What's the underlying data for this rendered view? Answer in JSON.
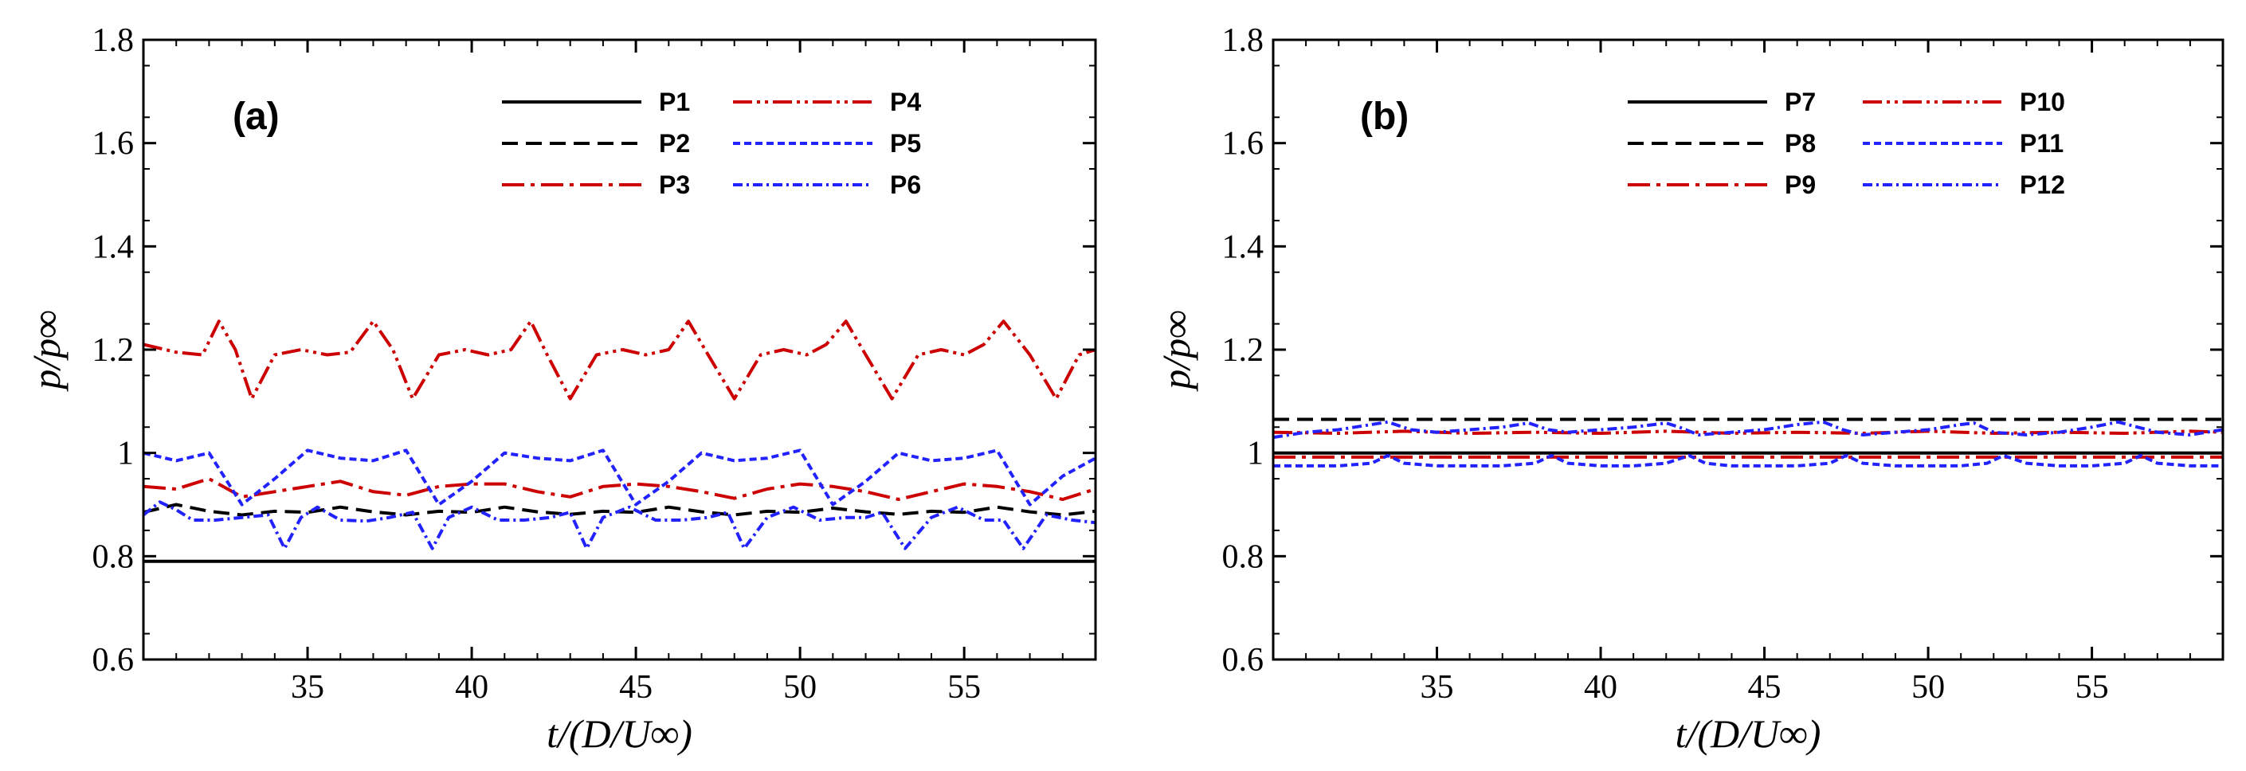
{
  "chart_data": [
    {
      "type": "line",
      "panel_label": "(a)",
      "xlabel": "t/(D/U∞)",
      "ylabel": "p/p∞",
      "xlim": [
        30,
        59
      ],
      "ylim": [
        0.6,
        1.8
      ],
      "xticks": [
        "35",
        "40",
        "45",
        "50",
        "55"
      ],
      "yticks": [
        "0.6",
        "0.8",
        "1",
        "1.2",
        "1.4",
        "1.6",
        "1.8"
      ],
      "grid": false,
      "legend_position": "top-right",
      "series": [
        {
          "name": "P1",
          "color": "#000000",
          "style": "solid",
          "x": [
            30,
            35,
            40,
            45,
            50,
            55,
            59
          ],
          "values": [
            0.79,
            0.79,
            0.79,
            0.79,
            0.79,
            0.79,
            0.79
          ]
        },
        {
          "name": "P2",
          "color": "#000000",
          "style": "dashed",
          "x": [
            30,
            31,
            32,
            33,
            34,
            35,
            36,
            37,
            38,
            39,
            40,
            41,
            42,
            43,
            44,
            45,
            46,
            47,
            48,
            49,
            50,
            51,
            52,
            53,
            54,
            55,
            56,
            57,
            58,
            59
          ],
          "values": [
            0.885,
            0.9,
            0.887,
            0.88,
            0.887,
            0.885,
            0.895,
            0.886,
            0.88,
            0.887,
            0.885,
            0.895,
            0.886,
            0.881,
            0.887,
            0.885,
            0.895,
            0.886,
            0.88,
            0.887,
            0.885,
            0.893,
            0.886,
            0.881,
            0.887,
            0.885,
            0.895,
            0.886,
            0.88,
            0.887
          ]
        },
        {
          "name": "P3",
          "color": "#cc0000",
          "style": "dashdot",
          "x": [
            30,
            31,
            32,
            33,
            34,
            35,
            36,
            37,
            38,
            39,
            40,
            41,
            42,
            43,
            44,
            45,
            46,
            47,
            48,
            49,
            50,
            51,
            52,
            53,
            54,
            55,
            56,
            57,
            58,
            59
          ],
          "values": [
            0.935,
            0.93,
            0.95,
            0.915,
            0.925,
            0.935,
            0.945,
            0.925,
            0.918,
            0.935,
            0.94,
            0.94,
            0.925,
            0.915,
            0.935,
            0.94,
            0.935,
            0.925,
            0.912,
            0.93,
            0.94,
            0.935,
            0.925,
            0.91,
            0.925,
            0.94,
            0.935,
            0.925,
            0.91,
            0.93
          ]
        },
        {
          "name": "P4",
          "color": "#cc0000",
          "style": "dashdotdot",
          "x": [
            30,
            31,
            31.8,
            32.3,
            32.8,
            33.3,
            34,
            34.8,
            35.6,
            36.3,
            37,
            37.6,
            38.2,
            39,
            39.8,
            40.5,
            41.2,
            41.8,
            42.3,
            43,
            43.8,
            44.6,
            45.3,
            46,
            46.6,
            47.2,
            48,
            48.8,
            49.5,
            50.2,
            50.8,
            51.4,
            52,
            52.8,
            53.6,
            54.3,
            55,
            55.6,
            56.2,
            57,
            57.8,
            58.5,
            59
          ],
          "values": [
            1.21,
            1.195,
            1.19,
            1.255,
            1.2,
            1.105,
            1.19,
            1.2,
            1.19,
            1.195,
            1.255,
            1.2,
            1.105,
            1.19,
            1.2,
            1.19,
            1.2,
            1.255,
            1.19,
            1.105,
            1.19,
            1.2,
            1.19,
            1.2,
            1.255,
            1.19,
            1.105,
            1.19,
            1.2,
            1.19,
            1.21,
            1.255,
            1.19,
            1.105,
            1.19,
            1.2,
            1.19,
            1.21,
            1.255,
            1.19,
            1.105,
            1.19,
            1.2
          ]
        },
        {
          "name": "P5",
          "color": "#2222ff",
          "style": "dashed-fine",
          "x": [
            30,
            31,
            32,
            33,
            34,
            35,
            36,
            37,
            38,
            39,
            40,
            41,
            42,
            43,
            44,
            45,
            46,
            47,
            48,
            49,
            50,
            51,
            52,
            53,
            54,
            55,
            56,
            57,
            58,
            59
          ],
          "values": [
            1.0,
            0.985,
            1.0,
            0.9,
            0.95,
            1.005,
            0.99,
            0.985,
            1.005,
            0.9,
            0.945,
            1.0,
            0.99,
            0.985,
            1.005,
            0.9,
            0.945,
            1.0,
            0.985,
            0.99,
            1.005,
            0.9,
            0.945,
            1.0,
            0.985,
            0.99,
            1.005,
            0.9,
            0.955,
            0.99
          ]
        },
        {
          "name": "P6",
          "color": "#2222ff",
          "style": "dashdot-fine",
          "x": [
            30,
            30.5,
            31,
            31.5,
            32.2,
            33,
            33.8,
            34.3,
            34.8,
            35.3,
            36,
            36.8,
            37.5,
            38.2,
            38.8,
            39.3,
            40,
            40.8,
            41.6,
            42.4,
            43,
            43.5,
            44,
            44.8,
            45.6,
            46.4,
            47.2,
            47.8,
            48.3,
            49,
            49.8,
            50.6,
            51.4,
            52,
            52.5,
            53.2,
            54,
            54.8,
            55.6,
            56.2,
            56.8,
            57.5,
            58.3,
            59
          ],
          "values": [
            0.88,
            0.905,
            0.89,
            0.87,
            0.87,
            0.875,
            0.88,
            0.815,
            0.875,
            0.895,
            0.87,
            0.868,
            0.875,
            0.885,
            0.815,
            0.875,
            0.895,
            0.87,
            0.87,
            0.875,
            0.885,
            0.815,
            0.875,
            0.895,
            0.87,
            0.87,
            0.875,
            0.885,
            0.815,
            0.875,
            0.895,
            0.87,
            0.875,
            0.875,
            0.885,
            0.815,
            0.875,
            0.895,
            0.87,
            0.87,
            0.815,
            0.88,
            0.87,
            0.865
          ]
        }
      ]
    },
    {
      "type": "line",
      "panel_label": "(b)",
      "xlabel": "t/(D/U∞)",
      "ylabel": "p/p∞",
      "xlim": [
        30,
        59
      ],
      "ylim": [
        0.6,
        1.8
      ],
      "xticks": [
        "35",
        "40",
        "45",
        "50",
        "55"
      ],
      "yticks": [
        "0.6",
        "0.8",
        "1",
        "1.2",
        "1.4",
        "1.6",
        "1.8"
      ],
      "grid": false,
      "legend_position": "top-right",
      "series": [
        {
          "name": "P7",
          "color": "#000000",
          "style": "solid",
          "x": [
            30,
            35,
            40,
            45,
            50,
            55,
            59
          ],
          "values": [
            1.0,
            1.0,
            1.0,
            1.0,
            1.0,
            1.0,
            1.0
          ]
        },
        {
          "name": "P8",
          "color": "#000000",
          "style": "dashed",
          "x": [
            30,
            35,
            40,
            45,
            50,
            55,
            59
          ],
          "values": [
            1.065,
            1.065,
            1.065,
            1.065,
            1.065,
            1.065,
            1.065
          ]
        },
        {
          "name": "P9",
          "color": "#cc0000",
          "style": "dashdot",
          "x": [
            30,
            35,
            40,
            45,
            50,
            55,
            59
          ],
          "values": [
            0.992,
            0.992,
            0.992,
            0.992,
            0.992,
            0.992,
            0.992
          ]
        },
        {
          "name": "P10",
          "color": "#cc0000",
          "style": "dashdotdot",
          "x": [
            30,
            32,
            34,
            36,
            38,
            40,
            42,
            44,
            46,
            48,
            50,
            52,
            54,
            56,
            58,
            59
          ],
          "values": [
            1.04,
            1.038,
            1.042,
            1.038,
            1.04,
            1.038,
            1.042,
            1.038,
            1.04,
            1.038,
            1.042,
            1.038,
            1.04,
            1.038,
            1.042,
            1.04
          ]
        },
        {
          "name": "P11",
          "color": "#2222ff",
          "style": "dashed-fine",
          "x": [
            30,
            31,
            32,
            33,
            33.5,
            34,
            35,
            36,
            37,
            38,
            38.5,
            39,
            40,
            41,
            42,
            42.7,
            43.2,
            44,
            45,
            46,
            47,
            47.5,
            48,
            49,
            50,
            51,
            51.8,
            52.3,
            53,
            54,
            55,
            56,
            56.5,
            57,
            58,
            59
          ],
          "values": [
            0.975,
            0.975,
            0.975,
            0.98,
            0.995,
            0.98,
            0.975,
            0.975,
            0.975,
            0.98,
            0.995,
            0.98,
            0.975,
            0.975,
            0.98,
            0.995,
            0.98,
            0.975,
            0.975,
            0.975,
            0.98,
            0.995,
            0.98,
            0.975,
            0.975,
            0.975,
            0.98,
            0.995,
            0.98,
            0.975,
            0.975,
            0.98,
            0.995,
            0.98,
            0.975,
            0.975
          ]
        },
        {
          "name": "P12",
          "color": "#2222ff",
          "style": "dashdot-fine",
          "x": [
            30,
            31,
            32,
            33,
            33.5,
            34.2,
            35,
            36,
            37,
            37.8,
            38.4,
            39,
            40,
            41,
            42,
            42.4,
            43,
            44,
            45,
            46,
            46.8,
            47.4,
            48,
            49,
            50,
            51,
            51.4,
            52,
            53,
            54,
            55,
            55.8,
            56.4,
            57,
            58,
            59
          ],
          "values": [
            1.03,
            1.04,
            1.045,
            1.055,
            1.06,
            1.045,
            1.04,
            1.045,
            1.05,
            1.058,
            1.045,
            1.04,
            1.045,
            1.05,
            1.058,
            1.05,
            1.035,
            1.04,
            1.045,
            1.055,
            1.06,
            1.045,
            1.035,
            1.04,
            1.045,
            1.055,
            1.058,
            1.04,
            1.035,
            1.04,
            1.05,
            1.06,
            1.05,
            1.04,
            1.035,
            1.045
          ]
        }
      ]
    }
  ]
}
